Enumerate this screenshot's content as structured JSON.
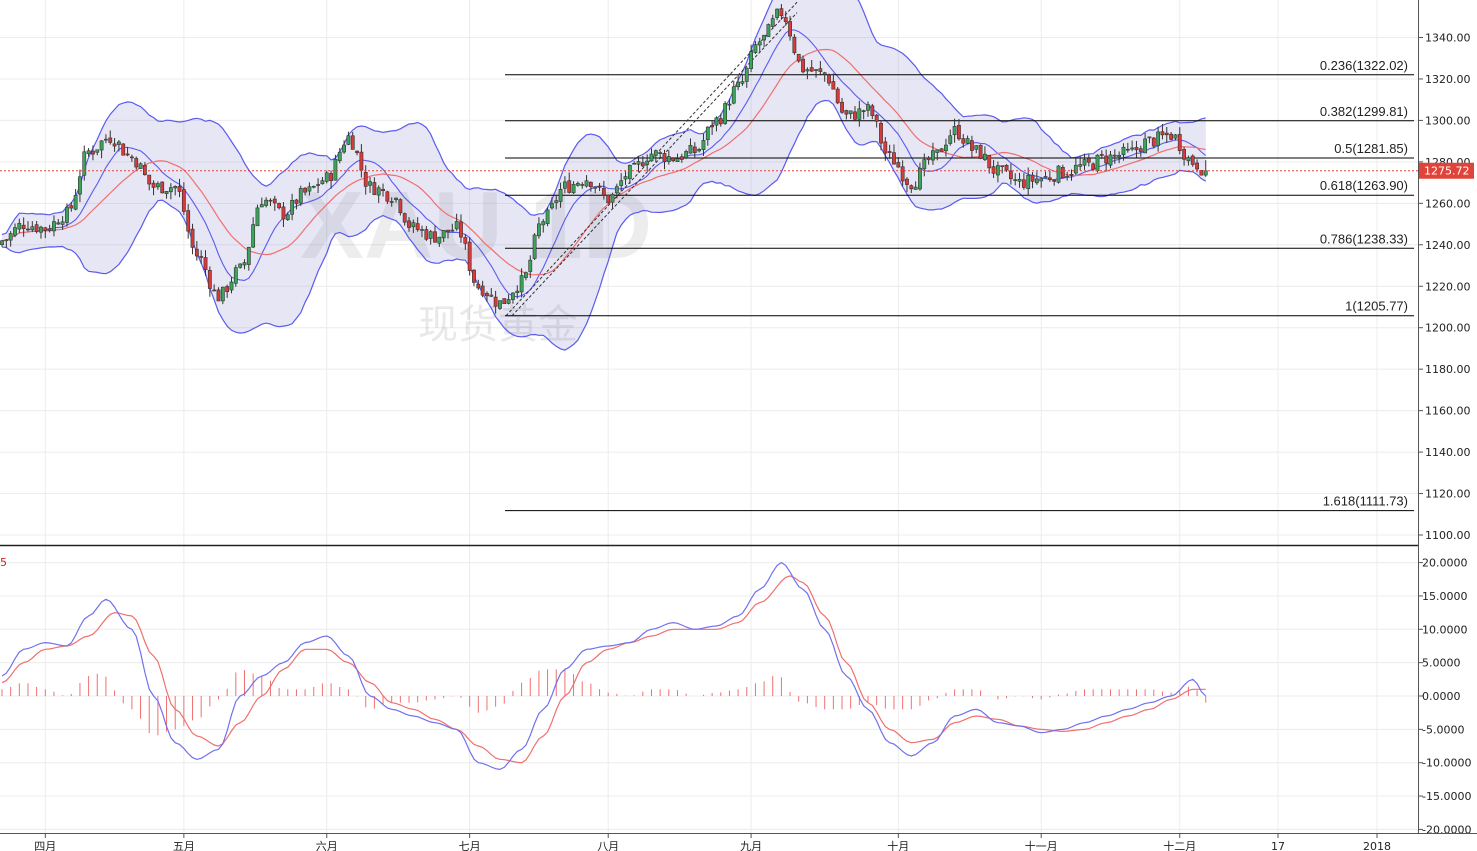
{
  "watermark": {
    "symbol": "XAU 1D",
    "name": "现货黄金"
  },
  "price_tag": {
    "value": "1275.72",
    "color": "#e0433a"
  },
  "colors": {
    "up_candle": "#3aa55a",
    "down_candle": "#d63a3a",
    "bb_line": "#5b5bf0",
    "bb_fill": "#8080c8",
    "ma_line": "#f07070",
    "macd_line": "#7070f0",
    "signal_line": "#f07070",
    "hist": "#f07070",
    "fib_line": "#000000"
  },
  "chart_data": [
    {
      "type": "candlestick",
      "series": [
        {
          "name": "",
          "values_ref": "candles"
        }
      ],
      "x_labels": [
        "四月",
        "五月",
        "六月",
        "七月",
        "八月",
        "九月",
        "十月",
        "十一月",
        "十二月",
        "17",
        "2018"
      ],
      "y_ticks": [
        "1100.00",
        "1120.00",
        "1140.00",
        "1160.00",
        "1180.00",
        "1200.00",
        "1220.00",
        "1240.00",
        "1260.00",
        "1280.00",
        "1300.00",
        "1320.00",
        "1340.00"
      ],
      "ylim": [
        1096,
        1357
      ],
      "fibonacci": [
        {
          "label": "0.236(1322.02)",
          "value": 1322.02
        },
        {
          "label": "0.382(1299.81)",
          "value": 1299.81
        },
        {
          "label": "0.5(1281.85)",
          "value": 1281.85
        },
        {
          "label": "0.618(1263.90)",
          "value": 1263.9
        },
        {
          "label": "0.786(1238.33)",
          "value": 1238.33
        },
        {
          "label": "1(1205.77)",
          "value": 1205.77
        },
        {
          "label": "1.618(1111.73)",
          "value": 1111.73
        }
      ],
      "last_price": 1275.72,
      "price_keypoints": [
        [
          0,
          1242
        ],
        [
          5,
          1250
        ],
        [
          10,
          1248
        ],
        [
          15,
          1255
        ],
        [
          20,
          1285
        ],
        [
          25,
          1292
        ],
        [
          30,
          1282
        ],
        [
          35,
          1268
        ],
        [
          40,
          1268
        ],
        [
          45,
          1235
        ],
        [
          50,
          1215
        ],
        [
          55,
          1228
        ],
        [
          60,
          1262
        ],
        [
          65,
          1255
        ],
        [
          70,
          1265
        ],
        [
          75,
          1272
        ],
        [
          80,
          1292
        ],
        [
          85,
          1268
        ],
        [
          90,
          1264
        ],
        [
          95,
          1248
        ],
        [
          100,
          1244
        ],
        [
          105,
          1248
        ],
        [
          110,
          1220
        ],
        [
          115,
          1212
        ],
        [
          120,
          1222
        ],
        [
          125,
          1252
        ],
        [
          130,
          1268
        ],
        [
          135,
          1272
        ],
        [
          140,
          1262
        ],
        [
          145,
          1275
        ],
        [
          150,
          1284
        ],
        [
          155,
          1282
        ],
        [
          160,
          1285
        ],
        [
          165,
          1300
        ],
        [
          170,
          1316
        ],
        [
          175,
          1338
        ],
        [
          180,
          1352
        ],
        [
          185,
          1325
        ],
        [
          190,
          1322
        ],
        [
          195,
          1302
        ],
        [
          200,
          1305
        ],
        [
          205,
          1282
        ],
        [
          210,
          1270
        ],
        [
          215,
          1282
        ],
        [
          220,
          1295
        ],
        [
          225,
          1285
        ],
        [
          230,
          1275
        ],
        [
          235,
          1270
        ],
        [
          240,
          1272
        ],
        [
          245,
          1275
        ],
        [
          250,
          1278
        ],
        [
          255,
          1282
        ],
        [
          260,
          1284
        ],
        [
          265,
          1290
        ],
        [
          270,
          1293
        ],
        [
          275,
          1280
        ],
        [
          278,
          1276
        ]
      ]
    },
    {
      "type": "macd",
      "y_ticks": [
        "-20.0000",
        "-15.0000",
        "-10.0000",
        "-5.0000",
        "0.0000",
        "5.0000",
        "10.0000",
        "15.0000",
        "20.0000"
      ],
      "ylim": [
        -20.5,
        21
      ],
      "corner_label": "5",
      "macd_keypoints": [
        [
          0,
          3
        ],
        [
          5,
          7
        ],
        [
          10,
          8
        ],
        [
          15,
          7.5
        ],
        [
          20,
          12
        ],
        [
          24,
          14.5
        ],
        [
          30,
          10
        ],
        [
          35,
          0
        ],
        [
          40,
          -7
        ],
        [
          45,
          -9.5
        ],
        [
          50,
          -8
        ],
        [
          55,
          0
        ],
        [
          60,
          3
        ],
        [
          65,
          5
        ],
        [
          70,
          8
        ],
        [
          75,
          9
        ],
        [
          80,
          6
        ],
        [
          85,
          0
        ],
        [
          90,
          -2
        ],
        [
          95,
          -3
        ],
        [
          100,
          -4
        ],
        [
          105,
          -5
        ],
        [
          110,
          -10
        ],
        [
          115,
          -11
        ],
        [
          120,
          -8
        ],
        [
          125,
          -2
        ],
        [
          130,
          4
        ],
        [
          135,
          7
        ],
        [
          140,
          7.5
        ],
        [
          145,
          8
        ],
        [
          150,
          10
        ],
        [
          155,
          11
        ],
        [
          160,
          10
        ],
        [
          165,
          10.5
        ],
        [
          170,
          12
        ],
        [
          175,
          16
        ],
        [
          180,
          20
        ],
        [
          185,
          16
        ],
        [
          190,
          10
        ],
        [
          195,
          3
        ],
        [
          200,
          -2
        ],
        [
          205,
          -7
        ],
        [
          210,
          -9
        ],
        [
          215,
          -7
        ],
        [
          220,
          -3
        ],
        [
          225,
          -2
        ],
        [
          230,
          -4
        ],
        [
          235,
          -4.5
        ],
        [
          240,
          -5.5
        ],
        [
          245,
          -5
        ],
        [
          250,
          -4
        ],
        [
          255,
          -3
        ],
        [
          260,
          -2
        ],
        [
          265,
          -1
        ],
        [
          270,
          0
        ],
        [
          275,
          2.5
        ],
        [
          278,
          0
        ]
      ],
      "signal_keypoints": [
        [
          0,
          2
        ],
        [
          5,
          5
        ],
        [
          10,
          7
        ],
        [
          15,
          7.5
        ],
        [
          20,
          9
        ],
        [
          26,
          12.5
        ],
        [
          30,
          12
        ],
        [
          35,
          6
        ],
        [
          40,
          -2
        ],
        [
          45,
          -6
        ],
        [
          50,
          -7.5
        ],
        [
          55,
          -4
        ],
        [
          60,
          0
        ],
        [
          65,
          4
        ],
        [
          70,
          7
        ],
        [
          75,
          7
        ],
        [
          80,
          5
        ],
        [
          85,
          2
        ],
        [
          90,
          -1
        ],
        [
          95,
          -2
        ],
        [
          100,
          -3.5
        ],
        [
          105,
          -5
        ],
        [
          110,
          -7.5
        ],
        [
          115,
          -9.5
        ],
        [
          120,
          -10
        ],
        [
          125,
          -6
        ],
        [
          130,
          0
        ],
        [
          135,
          5
        ],
        [
          140,
          7
        ],
        [
          145,
          8
        ],
        [
          150,
          9
        ],
        [
          155,
          10
        ],
        [
          160,
          10
        ],
        [
          165,
          10
        ],
        [
          170,
          11
        ],
        [
          175,
          14
        ],
        [
          182,
          18
        ],
        [
          185,
          17
        ],
        [
          190,
          12
        ],
        [
          195,
          5
        ],
        [
          200,
          -1
        ],
        [
          205,
          -5
        ],
        [
          210,
          -7
        ],
        [
          215,
          -6.5
        ],
        [
          220,
          -4
        ],
        [
          225,
          -3
        ],
        [
          230,
          -3.5
        ],
        [
          235,
          -4.5
        ],
        [
          240,
          -5
        ],
        [
          245,
          -5.3
        ],
        [
          250,
          -5
        ],
        [
          255,
          -4
        ],
        [
          260,
          -3
        ],
        [
          265,
          -2
        ],
        [
          270,
          -0.5
        ],
        [
          275,
          1
        ],
        [
          278,
          1
        ]
      ]
    }
  ]
}
